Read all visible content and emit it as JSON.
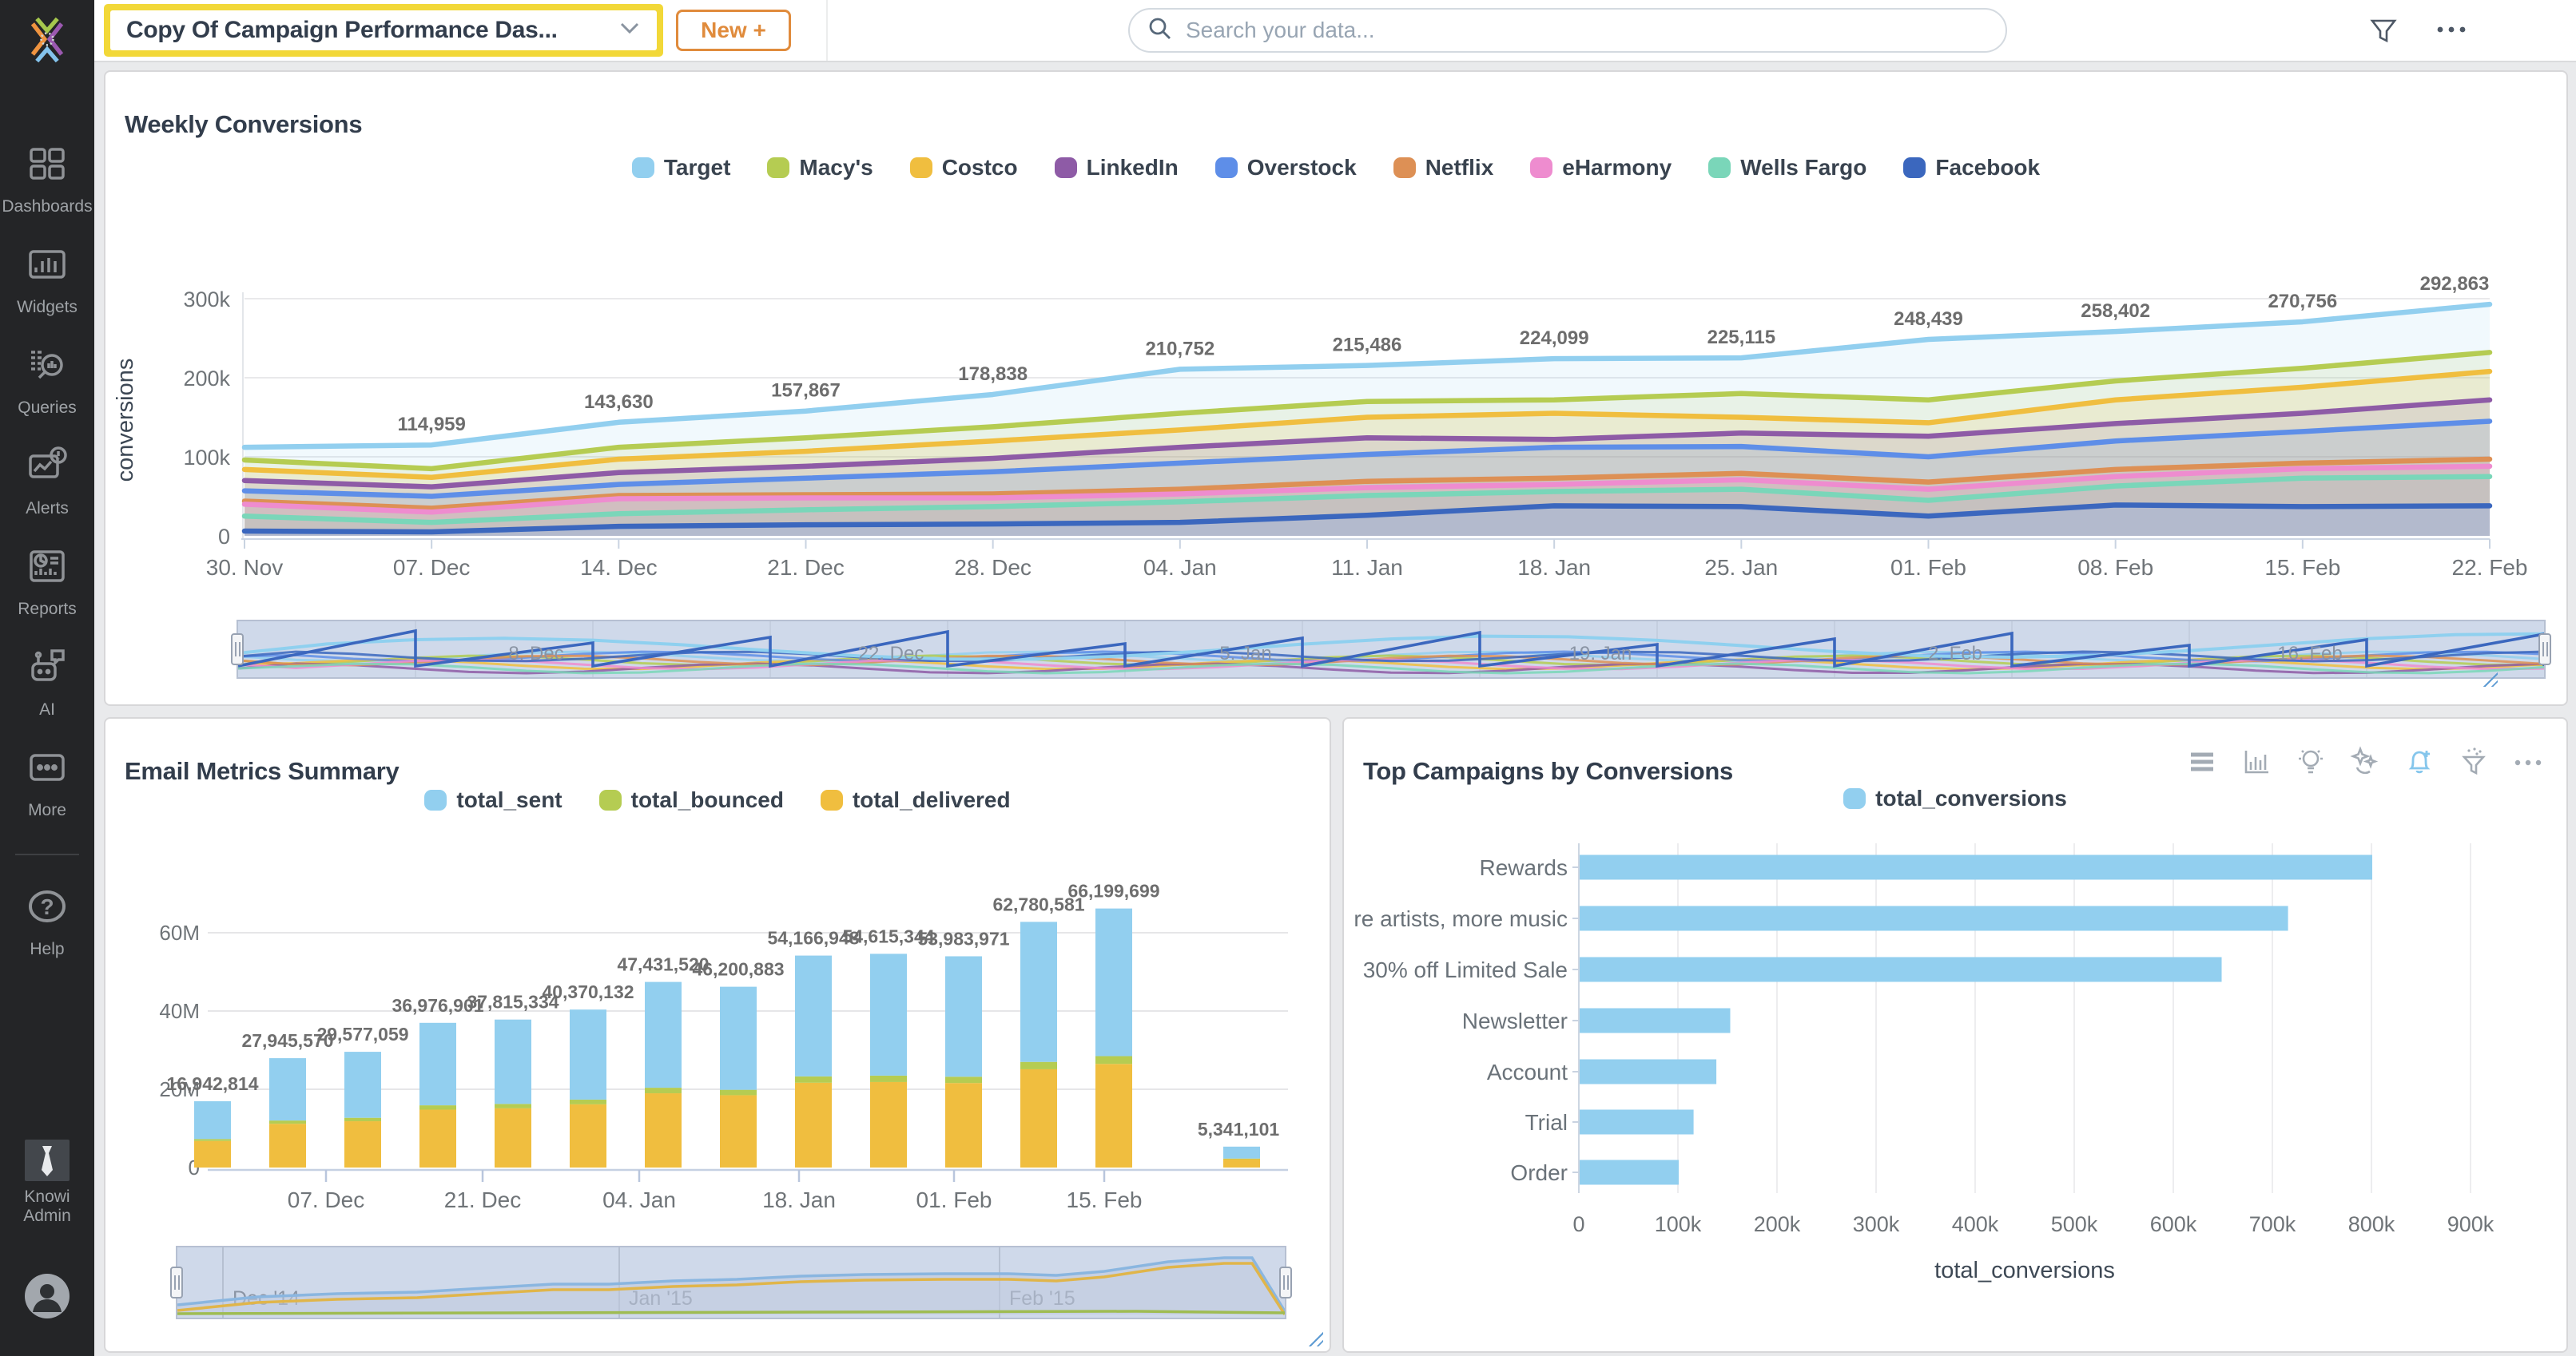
{
  "topbar": {
    "dashboard_title": "Copy Of Campaign Performance Das...",
    "new_button": "New +",
    "search_placeholder": "Search your data...",
    "highlight_color": "#F2D838",
    "accent_orange": "#e08b3c"
  },
  "sidebar": {
    "items": [
      {
        "label": "Dashboards"
      },
      {
        "label": "Widgets"
      },
      {
        "label": "Queries"
      },
      {
        "label": "Alerts"
      },
      {
        "label": "Reports"
      },
      {
        "label": "AI"
      },
      {
        "label": "More"
      },
      {
        "label": "Help"
      }
    ],
    "admin_label": "Knowi Admin"
  },
  "panels": {
    "weekly": {
      "title": "Weekly Conversions"
    },
    "email": {
      "title": "Email Metrics Summary"
    },
    "campaigns": {
      "title": "Top Campaigns by Conversions"
    }
  },
  "chart_data": [
    {
      "type": "area",
      "title": "Weekly Conversions",
      "ylabel": "conversions",
      "yticks": [
        "0",
        "100k",
        "200k",
        "300k"
      ],
      "ylim": [
        0,
        300000
      ],
      "grid": true,
      "legend_position": "top",
      "categories": [
        "30. Nov",
        "07. Dec",
        "14. Dec",
        "21. Dec",
        "28. Dec",
        "04. Jan",
        "11. Jan",
        "18. Jan",
        "25. Jan",
        "01. Feb",
        "08. Feb",
        "15. Feb",
        "22. Feb"
      ],
      "point_labels": [
        "",
        "114,959",
        "143,630",
        "157,867",
        "178,838",
        "210,752",
        "215,486",
        "224,099",
        "225,115",
        "248,439",
        "258,402",
        "270,756",
        "292,863"
      ],
      "series": [
        {
          "name": "Target",
          "color": "#92CFEF",
          "values": [
            112000,
            114959,
            143630,
            157867,
            178838,
            210752,
            215486,
            224099,
            225115,
            248439,
            258402,
            270756,
            292863
          ]
        },
        {
          "name": "Macy's",
          "color": "#B5CC52",
          "values": [
            96000,
            85000,
            112000,
            124000,
            138000,
            155000,
            170000,
            172000,
            180000,
            172000,
            196000,
            212000,
            232000
          ]
        },
        {
          "name": "Costco",
          "color": "#F0BE3F",
          "values": [
            84000,
            74000,
            97000,
            107000,
            120000,
            134000,
            150000,
            155000,
            150000,
            143000,
            172000,
            188000,
            208000
          ]
        },
        {
          "name": "LinkedIn",
          "color": "#8E5BA6",
          "values": [
            70000,
            62000,
            80000,
            88000,
            98000,
            112000,
            124000,
            122000,
            130000,
            126000,
            142000,
            155000,
            172000
          ]
        },
        {
          "name": "Overstock",
          "color": "#5E8EE8",
          "values": [
            57000,
            50000,
            65000,
            73000,
            81000,
            92000,
            103000,
            112000,
            113000,
            100000,
            120000,
            132000,
            145000
          ]
        },
        {
          "name": "Netflix",
          "color": "#DD9055",
          "values": [
            44000,
            35000,
            51000,
            52000,
            53000,
            59000,
            69000,
            73000,
            79000,
            68000,
            84000,
            92000,
            97000
          ]
        },
        {
          "name": "eHarmony",
          "color": "#EE8CCF",
          "values": [
            40000,
            30000,
            47000,
            48000,
            48000,
            53000,
            61000,
            65000,
            71000,
            59000,
            75000,
            85000,
            88000
          ]
        },
        {
          "name": "Wells Fargo",
          "color": "#7AD6B9",
          "values": [
            25000,
            17000,
            28000,
            33000,
            37000,
            43000,
            51000,
            56000,
            59000,
            45000,
            63000,
            73000,
            75000
          ]
        },
        {
          "name": "Facebook",
          "color": "#3B67BE",
          "values": [
            6000,
            5000,
            12000,
            14000,
            15000,
            17000,
            26000,
            38000,
            37000,
            25000,
            39000,
            37000,
            38000
          ]
        }
      ],
      "navigator_labels": [
        "8. Dec",
        "22. Dec",
        "5. Jan",
        "19. Jan",
        "2. Feb",
        "16. Feb"
      ]
    },
    {
      "type": "bar",
      "subtype": "stacked-vertical",
      "title": "Email Metrics Summary",
      "yticks": [
        "0",
        "20M",
        "40M",
        "60M"
      ],
      "ylim": [
        0,
        70000000
      ],
      "xticks": [
        "07. Dec",
        "21. Dec",
        "04. Jan",
        "18. Jan",
        "01. Feb",
        "15. Feb"
      ],
      "bar_labels": [
        "16,942,814",
        "27,945,570",
        "29,577,059",
        "36,976,901",
        "37,815,334",
        "40,370,132",
        "47,431,520",
        "46,200,883",
        "54,166,948",
        "54,615,344",
        "53,983,971",
        "62,780,581",
        "66,199,699",
        "5,341,101"
      ],
      "totals": [
        16942814,
        27945570,
        29577059,
        36976901,
        37815334,
        40370132,
        47431520,
        46200883,
        54166948,
        54615344,
        53983971,
        62780581,
        66199699,
        5341101
      ],
      "series": [
        {
          "name": "total_sent",
          "color": "#92CFEF",
          "stack_fraction": 0.57
        },
        {
          "name": "total_bounced",
          "color": "#B5CC52",
          "stack_fraction": 0.03
        },
        {
          "name": "total_delivered",
          "color": "#F0BE3F",
          "stack_fraction": 0.4
        }
      ],
      "navigator_labels": [
        "Dec '14",
        "Jan '15",
        "Feb '15"
      ]
    },
    {
      "type": "bar",
      "subtype": "horizontal",
      "title": "Top Campaigns by Conversions",
      "legend": "total_conversions",
      "color": "#92CFEF",
      "categories": [
        "Rewards",
        "More artists, more music",
        "30% off Limited Sale",
        "Newsletter",
        "Account",
        "Trial",
        "Order"
      ],
      "values": [
        800000,
        715000,
        648000,
        152000,
        138000,
        115000,
        100000
      ],
      "xticks": [
        "0",
        "100k",
        "200k",
        "300k",
        "400k",
        "500k",
        "600k",
        "700k",
        "800k",
        "900k"
      ],
      "xlim": [
        0,
        900000
      ],
      "xlabel": "total_conversions"
    }
  ]
}
